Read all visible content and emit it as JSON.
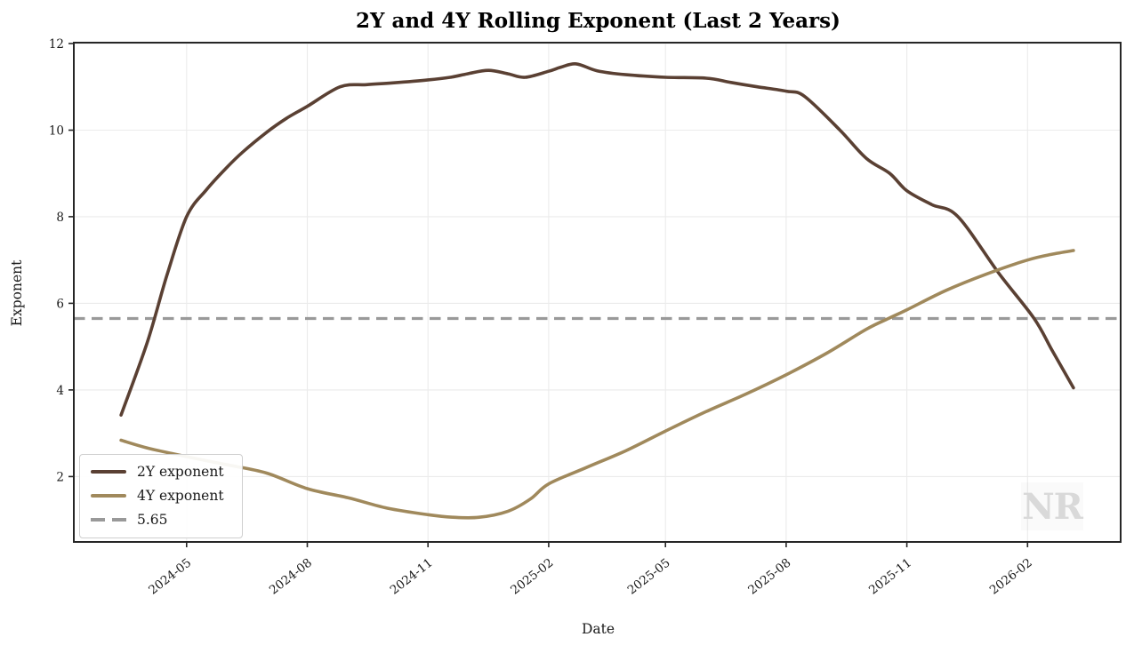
{
  "chart_data": {
    "type": "line",
    "title": "2Y and 4Y Rolling Exponent (Last 2 Years)",
    "xlabel": "Date",
    "ylabel": "Exponent",
    "watermark": "NR",
    "grid": true,
    "legend_position": "lower left",
    "x_axis": {
      "min": "2024-02-05",
      "max": "2026-04-13",
      "tick_dates": [
        "2024-05-01",
        "2024-08-01",
        "2024-11-01",
        "2025-02-01",
        "2025-05-01",
        "2025-08-01",
        "2025-11-01",
        "2026-02-01"
      ],
      "tick_labels": [
        "2024-05",
        "2024-08",
        "2024-11",
        "2025-02",
        "2025-05",
        "2025-08",
        "2025-11",
        "2026-02"
      ],
      "tick_rotation_deg": 38
    },
    "y_axis": {
      "min": 0.49,
      "max": 12.02,
      "ticks": [
        2,
        4,
        6,
        8,
        10,
        12
      ]
    },
    "series": [
      {
        "name": "2Y exponent",
        "color": "#5A4033",
        "line_width": 3.6,
        "points": [
          [
            "2024-03-12",
            3.42
          ],
          [
            "2024-04-01",
            5.1
          ],
          [
            "2024-04-16",
            6.65
          ],
          [
            "2024-05-01",
            8.0
          ],
          [
            "2024-05-16",
            8.62
          ],
          [
            "2024-06-01",
            9.15
          ],
          [
            "2024-06-13",
            9.5
          ],
          [
            "2024-07-01",
            9.95
          ],
          [
            "2024-07-16",
            10.27
          ],
          [
            "2024-08-01",
            10.55
          ],
          [
            "2024-08-26",
            11.0
          ],
          [
            "2024-09-15",
            11.05
          ],
          [
            "2024-10-05",
            11.09
          ],
          [
            "2024-11-01",
            11.16
          ],
          [
            "2024-11-18",
            11.22
          ],
          [
            "2024-12-01",
            11.3
          ],
          [
            "2024-12-17",
            11.38
          ],
          [
            "2025-01-01",
            11.3
          ],
          [
            "2025-01-14",
            11.22
          ],
          [
            "2025-02-01",
            11.36
          ],
          [
            "2025-02-10",
            11.45
          ],
          [
            "2025-02-22",
            11.53
          ],
          [
            "2025-03-10",
            11.37
          ],
          [
            "2025-04-01",
            11.28
          ],
          [
            "2025-05-01",
            11.22
          ],
          [
            "2025-06-01",
            11.2
          ],
          [
            "2025-06-20",
            11.1
          ],
          [
            "2025-07-10",
            11.0
          ],
          [
            "2025-08-01",
            10.9
          ],
          [
            "2025-08-15",
            10.78
          ],
          [
            "2025-09-11",
            10.0
          ],
          [
            "2025-10-01",
            9.35
          ],
          [
            "2025-10-19",
            9.0
          ],
          [
            "2025-11-01",
            8.6
          ],
          [
            "2025-11-20",
            8.28
          ],
          [
            "2025-12-10",
            8.0
          ],
          [
            "2026-01-10",
            6.7
          ],
          [
            "2026-02-06",
            5.65
          ],
          [
            "2026-02-20",
            4.9
          ],
          [
            "2026-03-08",
            4.05
          ]
        ]
      },
      {
        "name": "4Y exponent",
        "color": "#A0895C",
        "line_width": 3.6,
        "points": [
          [
            "2024-03-12",
            2.84
          ],
          [
            "2024-04-01",
            2.66
          ],
          [
            "2024-05-01",
            2.46
          ],
          [
            "2024-06-01",
            2.27
          ],
          [
            "2024-07-01",
            2.08
          ],
          [
            "2024-08-01",
            1.72
          ],
          [
            "2024-09-01",
            1.51
          ],
          [
            "2024-10-01",
            1.27
          ],
          [
            "2024-11-01",
            1.12
          ],
          [
            "2024-11-20",
            1.06
          ],
          [
            "2024-12-10",
            1.06
          ],
          [
            "2025-01-01",
            1.2
          ],
          [
            "2025-01-18",
            1.48
          ],
          [
            "2025-02-01",
            1.83
          ],
          [
            "2025-03-01",
            2.2
          ],
          [
            "2025-04-01",
            2.6
          ],
          [
            "2025-05-01",
            3.05
          ],
          [
            "2025-06-01",
            3.5
          ],
          [
            "2025-07-01",
            3.9
          ],
          [
            "2025-08-01",
            4.35
          ],
          [
            "2025-09-01",
            4.85
          ],
          [
            "2025-10-01",
            5.4
          ],
          [
            "2025-10-18",
            5.65
          ],
          [
            "2025-11-01",
            5.85
          ],
          [
            "2025-12-01",
            6.3
          ],
          [
            "2026-01-01",
            6.68
          ],
          [
            "2026-02-01",
            7.0
          ],
          [
            "2026-02-19",
            7.13
          ],
          [
            "2026-03-08",
            7.22
          ]
        ]
      }
    ],
    "threshold": {
      "label": "5.65",
      "value": 5.65,
      "color": "#999999",
      "style": "dashed",
      "line_width": 3.2
    }
  }
}
